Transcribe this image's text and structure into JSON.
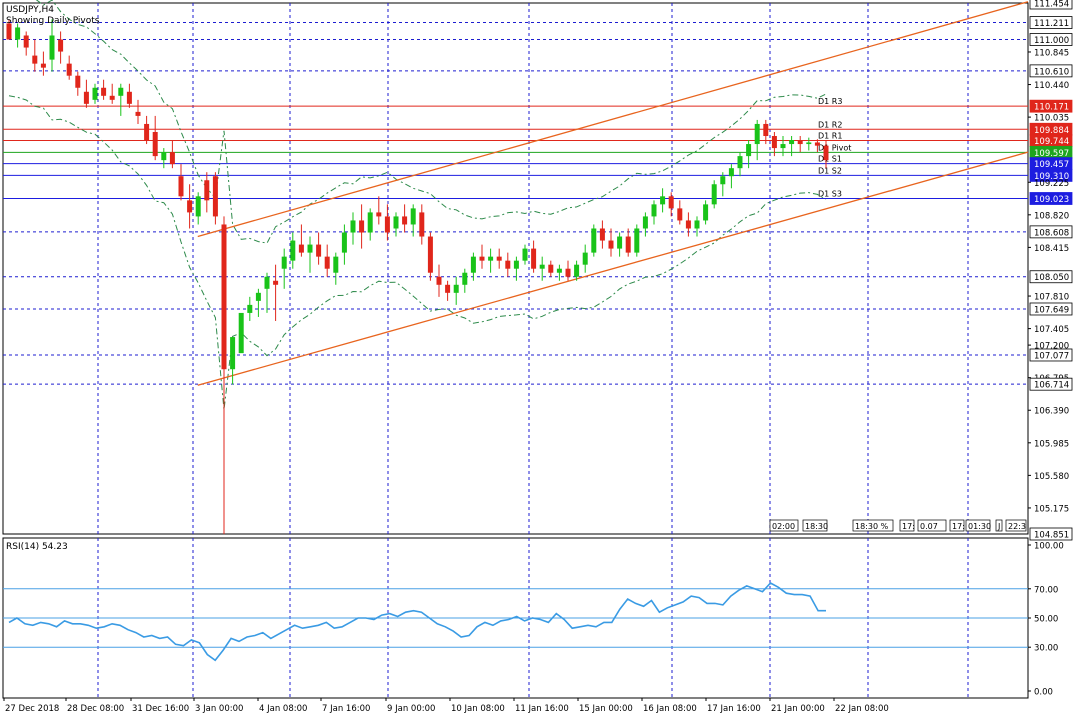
{
  "header": {
    "symbol_label": "USDJPY,H4",
    "indicator_label": "Showing Daily Pivots"
  },
  "price_axis": {
    "ticks": [
      "111.454",
      "111.211",
      "111.000",
      "110.845",
      "110.610",
      "110.440",
      "110.171",
      "110.035",
      "109.884",
      "109.744",
      "109.597",
      "109.457",
      "109.310",
      "109.225",
      "109.023",
      "108.820",
      "108.608",
      "108.415",
      "108.050",
      "107.810",
      "107.649",
      "107.405",
      "107.200",
      "107.077",
      "106.795",
      "106.714",
      "106.390",
      "105.985",
      "105.580",
      "105.175",
      "104.851"
    ],
    "highlighted": [
      {
        "value": "111.454",
        "color": "#ffffff",
        "text": "#000000"
      },
      {
        "value": "111.211",
        "color": "#ffffff",
        "text": "#000000"
      },
      {
        "value": "111.000",
        "color": "#ffffff",
        "text": "#000000"
      },
      {
        "value": "110.610",
        "color": "#ffffff",
        "text": "#000000"
      },
      {
        "value": "110.171",
        "color": "#e0261b",
        "text": "#ffffff"
      },
      {
        "value": "109.884",
        "color": "#e0261b",
        "text": "#ffffff"
      },
      {
        "value": "109.744",
        "color": "#e0261b",
        "text": "#ffffff"
      },
      {
        "value": "109.597",
        "color": "#1ea51e",
        "text": "#ffffff"
      },
      {
        "value": "109.457",
        "color": "#1d1de0",
        "text": "#ffffff"
      },
      {
        "value": "109.310",
        "color": "#1d1de0",
        "text": "#ffffff"
      },
      {
        "value": "109.023",
        "color": "#1d1de0",
        "text": "#ffffff"
      },
      {
        "value": "108.608",
        "color": "#ffffff",
        "text": "#000000"
      },
      {
        "value": "108.050",
        "color": "#ffffff",
        "text": "#000000"
      },
      {
        "value": "107.649",
        "color": "#ffffff",
        "text": "#000000"
      },
      {
        "value": "107.077",
        "color": "#ffffff",
        "text": "#000000"
      },
      {
        "value": "106.714",
        "color": "#ffffff",
        "text": "#000000"
      },
      {
        "value": "104.851",
        "color": "#ffffff",
        "text": "#000000"
      }
    ]
  },
  "time_axis": {
    "labels": [
      "27 Dec 2018",
      "28 Dec 08:00",
      "31 Dec 16:00",
      "3 Jan 00:00",
      "4 Jan 08:00",
      "7 Jan 16:00",
      "9 Jan 00:00",
      "10 Jan 08:00",
      "11 Jan 16:00",
      "15 Jan 00:00",
      "16 Jan 08:00",
      "17 Jan 16:00",
      "21 Jan 00:00",
      "22 Jan 08:00"
    ]
  },
  "session_tags": [
    "02:00",
    "18:30",
    "18:30 %",
    "17:",
    "0.07",
    "17:",
    "01:30",
    "J",
    "22:3"
  ],
  "rsi": {
    "label": "RSI(14) 54.23",
    "ticks": [
      "100.00",
      "70.00",
      "50.00",
      "30.00",
      "0.00"
    ],
    "levels": [
      70,
      50,
      30
    ]
  },
  "chart_data": {
    "type": "candlestick",
    "title": "USDJPY,H4",
    "subtitle": "Showing Daily Pivots",
    "ylim": [
      104.851,
      111.454
    ],
    "grid": true,
    "colors": {
      "bull": "#19c319",
      "bear": "#e0261b",
      "pivot_resist": "#e0261b",
      "pivot": "#1ea51e",
      "pivot_support": "#1d1de0",
      "channel": "#e8641e",
      "rsi": "#3a9be4",
      "levels": "#4aa0e6"
    },
    "pivots": [
      {
        "name": "D1 R3",
        "value": 110.171
      },
      {
        "name": "D1 R2",
        "value": 109.884
      },
      {
        "name": "D1 R1",
        "value": 109.744
      },
      {
        "name": "D1 Pivot",
        "value": 109.597
      },
      {
        "name": "D1 S1",
        "value": 109.457
      },
      {
        "name": "D1 S2",
        "value": 109.31
      },
      {
        "name": "D1 S3",
        "value": 109.023
      }
    ],
    "candles_ohlc": [
      [
        111.2,
        111.25,
        111.0,
        111.0
      ],
      [
        111.0,
        111.2,
        110.9,
        111.15
      ],
      [
        111.05,
        111.1,
        110.8,
        110.9
      ],
      [
        110.8,
        111.0,
        110.6,
        110.7
      ],
      [
        110.7,
        110.85,
        110.55,
        110.65
      ],
      [
        110.75,
        111.25,
        110.6,
        111.05
      ],
      [
        111.0,
        111.1,
        110.7,
        110.85
      ],
      [
        110.7,
        110.8,
        110.5,
        110.55
      ],
      [
        110.55,
        110.6,
        110.3,
        110.4
      ],
      [
        110.35,
        110.5,
        110.15,
        110.2
      ],
      [
        110.25,
        110.45,
        110.2,
        110.4
      ],
      [
        110.4,
        110.5,
        110.25,
        110.3
      ],
      [
        110.3,
        110.45,
        110.2,
        110.25
      ],
      [
        110.3,
        110.45,
        110.05,
        110.4
      ],
      [
        110.35,
        110.45,
        110.15,
        110.2
      ],
      [
        110.1,
        110.25,
        109.95,
        110.05
      ],
      [
        109.95,
        110.05,
        109.7,
        109.75
      ],
      [
        109.85,
        110.05,
        109.5,
        109.55
      ],
      [
        109.5,
        109.65,
        109.4,
        109.6
      ],
      [
        109.6,
        109.75,
        109.4,
        109.45
      ],
      [
        109.3,
        109.45,
        109.0,
        109.05
      ],
      [
        109.0,
        109.2,
        108.65,
        108.85
      ],
      [
        108.8,
        109.1,
        108.7,
        109.05
      ],
      [
        109.25,
        109.35,
        108.85,
        109.0
      ],
      [
        109.3,
        109.35,
        108.7,
        108.8
      ],
      [
        108.7,
        108.8,
        104.85,
        106.9
      ],
      [
        106.9,
        107.2,
        106.71,
        107.3
      ],
      [
        107.1,
        107.3,
        107.2,
        107.6
      ],
      [
        107.6,
        107.8,
        107.5,
        107.7
      ],
      [
        107.75,
        107.9,
        107.55,
        107.85
      ],
      [
        107.9,
        108.1,
        107.6,
        108.05
      ],
      [
        108.0,
        108.2,
        107.5,
        107.95
      ],
      [
        108.15,
        108.4,
        107.9,
        108.3
      ],
      [
        108.25,
        108.6,
        108.15,
        108.5
      ],
      [
        108.45,
        108.7,
        108.3,
        108.35
      ],
      [
        108.35,
        108.55,
        108.1,
        108.45
      ],
      [
        108.45,
        108.6,
        108.2,
        108.3
      ],
      [
        108.3,
        108.45,
        108.05,
        108.15
      ],
      [
        108.1,
        108.35,
        107.95,
        108.3
      ],
      [
        108.35,
        108.7,
        108.2,
        108.6
      ],
      [
        108.6,
        108.85,
        108.45,
        108.75
      ],
      [
        108.75,
        108.95,
        108.4,
        108.6
      ],
      [
        108.6,
        108.9,
        108.5,
        108.85
      ],
      [
        108.85,
        109.05,
        108.7,
        108.8
      ],
      [
        108.8,
        108.95,
        108.5,
        108.6
      ],
      [
        108.65,
        108.85,
        108.55,
        108.8
      ],
      [
        108.8,
        108.95,
        108.6,
        108.7
      ],
      [
        108.7,
        108.95,
        108.55,
        108.9
      ],
      [
        108.85,
        108.95,
        108.45,
        108.55
      ],
      [
        108.55,
        108.6,
        108.0,
        108.1
      ],
      [
        108.05,
        108.2,
        107.8,
        107.95
      ],
      [
        107.95,
        108.0,
        107.75,
        107.85
      ],
      [
        107.85,
        108.05,
        107.7,
        107.95
      ],
      [
        107.95,
        108.15,
        107.85,
        108.1
      ],
      [
        108.1,
        108.35,
        108.0,
        108.3
      ],
      [
        108.3,
        108.45,
        108.15,
        108.25
      ],
      [
        108.25,
        108.4,
        108.1,
        108.3
      ],
      [
        108.3,
        108.4,
        108.15,
        108.25
      ],
      [
        108.25,
        108.35,
        108.05,
        108.15
      ],
      [
        108.15,
        108.3,
        108.0,
        108.25
      ],
      [
        108.25,
        108.45,
        108.2,
        108.4
      ],
      [
        108.4,
        108.5,
        108.1,
        108.15
      ],
      [
        108.15,
        108.3,
        108.0,
        108.2
      ],
      [
        108.2,
        108.25,
        108.05,
        108.1
      ],
      [
        108.1,
        108.2,
        108.0,
        108.15
      ],
      [
        108.15,
        108.25,
        108.0,
        108.05
      ],
      [
        108.05,
        108.25,
        108.0,
        108.2
      ],
      [
        108.2,
        108.45,
        108.1,
        108.35
      ],
      [
        108.35,
        108.7,
        108.3,
        108.65
      ],
      [
        108.65,
        108.75,
        108.4,
        108.5
      ],
      [
        108.5,
        108.65,
        108.3,
        108.4
      ],
      [
        108.4,
        108.6,
        108.3,
        108.55
      ],
      [
        108.55,
        108.65,
        108.3,
        108.35
      ],
      [
        108.35,
        108.7,
        108.3,
        108.65
      ],
      [
        108.65,
        108.85,
        108.55,
        108.8
      ],
      [
        108.8,
        109.0,
        108.7,
        108.95
      ],
      [
        108.95,
        109.15,
        108.85,
        109.05
      ],
      [
        109.05,
        109.1,
        108.8,
        108.9
      ],
      [
        108.9,
        109.0,
        108.7,
        108.75
      ],
      [
        108.75,
        108.85,
        108.55,
        108.65
      ],
      [
        108.65,
        108.8,
        108.55,
        108.75
      ],
      [
        108.75,
        109.0,
        108.7,
        108.95
      ],
      [
        108.95,
        109.25,
        108.9,
        109.2
      ],
      [
        109.2,
        109.35,
        109.05,
        109.3
      ],
      [
        109.3,
        109.45,
        109.15,
        109.4
      ],
      [
        109.4,
        109.6,
        109.3,
        109.55
      ],
      [
        109.55,
        109.75,
        109.4,
        109.7
      ],
      [
        109.7,
        110.0,
        109.5,
        109.95
      ],
      [
        109.95,
        110.0,
        109.7,
        109.8
      ],
      [
        109.8,
        109.85,
        109.55,
        109.65
      ],
      [
        109.65,
        109.8,
        109.55,
        109.7
      ],
      [
        109.7,
        109.8,
        109.55,
        109.75
      ],
      [
        109.75,
        109.8,
        109.6,
        109.7
      ],
      [
        109.7,
        109.78,
        109.62,
        109.72
      ],
      [
        109.72,
        109.76,
        109.6,
        109.68
      ],
      [
        109.68,
        109.75,
        109.4,
        109.5
      ]
    ],
    "channel_upper": [
      {
        "t": 0.19,
        "price": 108.55
      },
      {
        "t": 1.0,
        "price": 111.47
      }
    ],
    "channel_lower": [
      {
        "t": 0.19,
        "price": 106.7
      },
      {
        "t": 1.0,
        "price": 109.6
      }
    ],
    "rsi_values": [
      47,
      50,
      46,
      45,
      47,
      46,
      44,
      48,
      46,
      46,
      45,
      43,
      44,
      46,
      45,
      42,
      40,
      37,
      38,
      36,
      37,
      32,
      31,
      35,
      33,
      25,
      21,
      28,
      36,
      34,
      37,
      38,
      40,
      36,
      39,
      42,
      45,
      43,
      44,
      45,
      47,
      43,
      44,
      47,
      50,
      50,
      49,
      52,
      53,
      51,
      54,
      55,
      54,
      50,
      46,
      44,
      41,
      37,
      38,
      44,
      47,
      45,
      48,
      49,
      51,
      48,
      50,
      49,
      47,
      53,
      49,
      43,
      44,
      45,
      44,
      47,
      47,
      56,
      63,
      60,
      58,
      62,
      54,
      57,
      59,
      61,
      65,
      64,
      60,
      60,
      59,
      65,
      69,
      72,
      70,
      68,
      74,
      71,
      67,
      66,
      66,
      65,
      55,
      55
    ]
  }
}
